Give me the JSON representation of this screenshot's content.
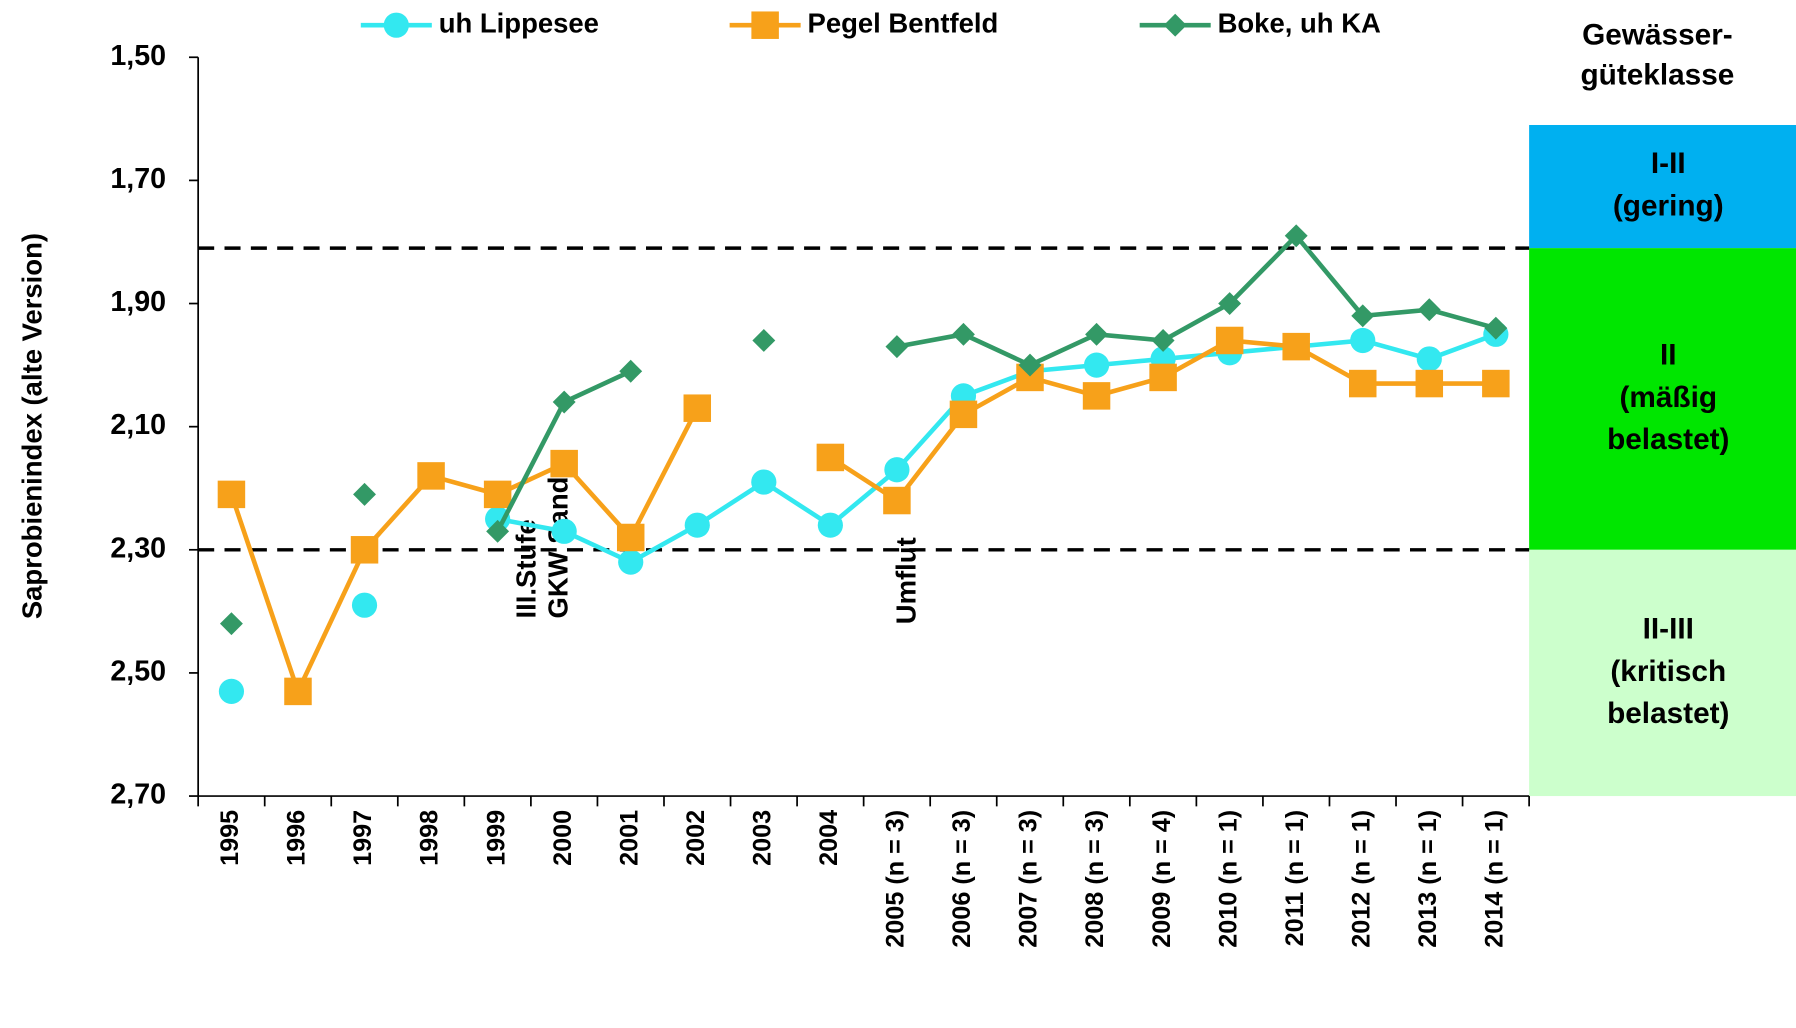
{
  "chart_data": {
    "type": "line",
    "y_axis_label": "Saprobienindex (alte Version)",
    "y_inverted": true,
    "categories": [
      "1995",
      "1996",
      "1997",
      "1998",
      "1999",
      "2000",
      "2001",
      "2002",
      "2003",
      "2004",
      "2005 (n = 3)",
      "2006 (n = 3)",
      "2007 (n = 3)",
      "2008 (n = 3)",
      "2009 (n = 4)",
      "2010 (n = 1)",
      "2011 (n = 1)",
      "2012 (n = 1)",
      "2013 (n = 1)",
      "2014 (n = 1)"
    ],
    "series": [
      {
        "name": "uh Lippesee",
        "color": "#33e8f0",
        "marker": "circle",
        "values": [
          2.53,
          null,
          2.39,
          null,
          2.25,
          2.27,
          2.32,
          2.26,
          2.19,
          2.26,
          2.17,
          2.05,
          2.01,
          2.0,
          1.99,
          1.98,
          1.97,
          1.96,
          1.99,
          1.95
        ]
      },
      {
        "name": "Pegel Bentfeld",
        "color": "#f7a11a",
        "marker": "square",
        "values": [
          2.21,
          2.53,
          2.3,
          2.18,
          2.21,
          2.16,
          2.28,
          2.07,
          null,
          2.15,
          2.22,
          2.08,
          2.02,
          2.05,
          2.02,
          1.96,
          1.97,
          2.03,
          2.03,
          2.03
        ]
      },
      {
        "name": "Boke, uh KA",
        "color": "#339966",
        "marker": "diamond",
        "values": [
          2.42,
          null,
          2.21,
          null,
          2.27,
          2.06,
          2.01,
          null,
          1.96,
          null,
          1.97,
          1.95,
          2.0,
          1.95,
          1.96,
          1.9,
          1.79,
          1.92,
          1.91,
          1.94
        ]
      }
    ],
    "ylim": [
      1.5,
      2.7
    ],
    "yticks": [
      {
        "value": 1.5,
        "label": "1,50"
      },
      {
        "value": 1.7,
        "label": "1,70"
      },
      {
        "value": 1.9,
        "label": "1,90"
      },
      {
        "value": 2.1,
        "label": "2,10"
      },
      {
        "value": 2.3,
        "label": "2,30"
      },
      {
        "value": 2.5,
        "label": "2,50"
      },
      {
        "value": 2.7,
        "label": "2,70"
      }
    ],
    "reference_lines": [
      1.81,
      2.3
    ],
    "class_header": [
      "Gewässer-",
      "güteklasse"
    ],
    "bands": [
      {
        "from": 1.61,
        "to": 1.81,
        "color": "#00b0f0",
        "label": [
          "I-II",
          "(gering)"
        ]
      },
      {
        "from": 1.81,
        "to": 2.3,
        "color": "#00e600",
        "label": [
          "II",
          "(mäßig",
          "belastet)"
        ]
      },
      {
        "from": 2.3,
        "to": 2.7,
        "color": "#ccffcc",
        "label": [
          "II-III",
          "(kritisch",
          "belastet)"
        ]
      }
    ],
    "annotations": [
      {
        "text": [
          "III.Stufe",
          "GKW Sande"
        ]
      },
      {
        "text": [
          "Umflut"
        ]
      }
    ]
  }
}
